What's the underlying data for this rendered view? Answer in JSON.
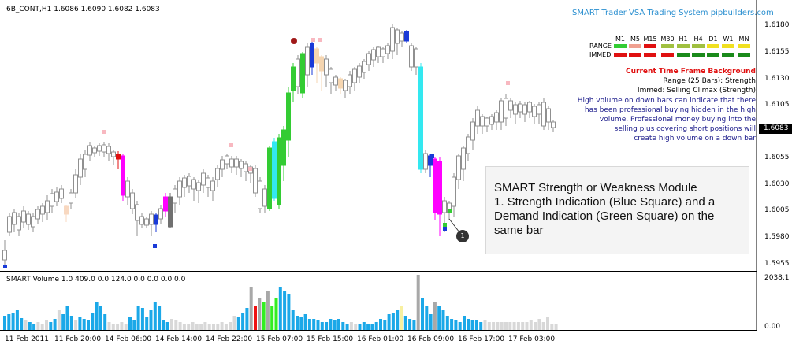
{
  "header": {
    "symbol_line": "6B_CONT,H1  1.6086 1.6090 1.6082 1.6083",
    "brand": "SMART Trader VSA Trading System pipbuilders.com"
  },
  "timeframes": {
    "labels": [
      "M1",
      "M5",
      "M15",
      "M30",
      "H1",
      "H4",
      "D1",
      "W1",
      "MN"
    ],
    "range_label": "RANGE",
    "immed_label": "IMMED",
    "range_colors": [
      "#33cc33",
      "#f0a090",
      "#e01010",
      "#a0c040",
      "#a0c040",
      "#a0c040",
      "#f0e020",
      "#f0e020",
      "#f0e020"
    ],
    "immed_colors": [
      "#e01010",
      "#e01010",
      "#e01010",
      "#e01010",
      "#1a8a1a",
      "#1a8a1a",
      "#1a8a1a",
      "#1a8a1a",
      "#1a8a1a"
    ]
  },
  "info": {
    "title": "Current Time Frame Background",
    "range_text": "Range (25 Bars): Strength",
    "immed_text": "Immed: Selling Climax (Strength)",
    "desc_lines": [
      "High volume on down bars can indicate that there",
      "has been professional buying hidden in the high",
      "volume. Professional money buying into the",
      "selling plus covering short positions will",
      "create high volume on a down bar"
    ]
  },
  "module": {
    "lines": [
      "SMART Strength or Weakness Module",
      "1. Strength Indication (Blue Square) and a",
      "Demand Indication (Green Square) on the",
      "same bar"
    ],
    "callout": "1"
  },
  "price_axis": {
    "ticks": [
      "1.6180",
      "1.6155",
      "1.6130",
      "1.6105",
      "1.6055",
      "1.6030",
      "1.6005",
      "1.5980",
      "1.5955"
    ],
    "current": "1.6083"
  },
  "volume": {
    "title": "SMART Volume 1.0 409.0 0.0 124.0 0.0 0.0 0.0 0.0",
    "ticks": [
      "2038.1",
      "0.00"
    ]
  },
  "time_axis": {
    "ticks": [
      "11 Feb 2011",
      "11 Feb 20:00",
      "14 Feb 06:00",
      "14 Feb 14:00",
      "14 Feb 22:00",
      "15 Feb 07:00",
      "15 Feb 15:00",
      "16 Feb 01:00",
      "16 Feb 09:00",
      "16 Feb 17:00",
      "17 Feb 03:00"
    ]
  },
  "colors": {
    "up_candle": "#33cc33",
    "down_candle": "#ff00ff",
    "neutral_candle": "#b8b8b8",
    "cyan_candle": "#33e8f0",
    "vol_blue": "#1ba8e8",
    "vol_gray": "#a8a8a8",
    "vol_light": "#d8d8d8",
    "vol_green": "#33ee22",
    "vol_red": "#ee1111",
    "vol_yellow": "#f8f0a0"
  }
}
